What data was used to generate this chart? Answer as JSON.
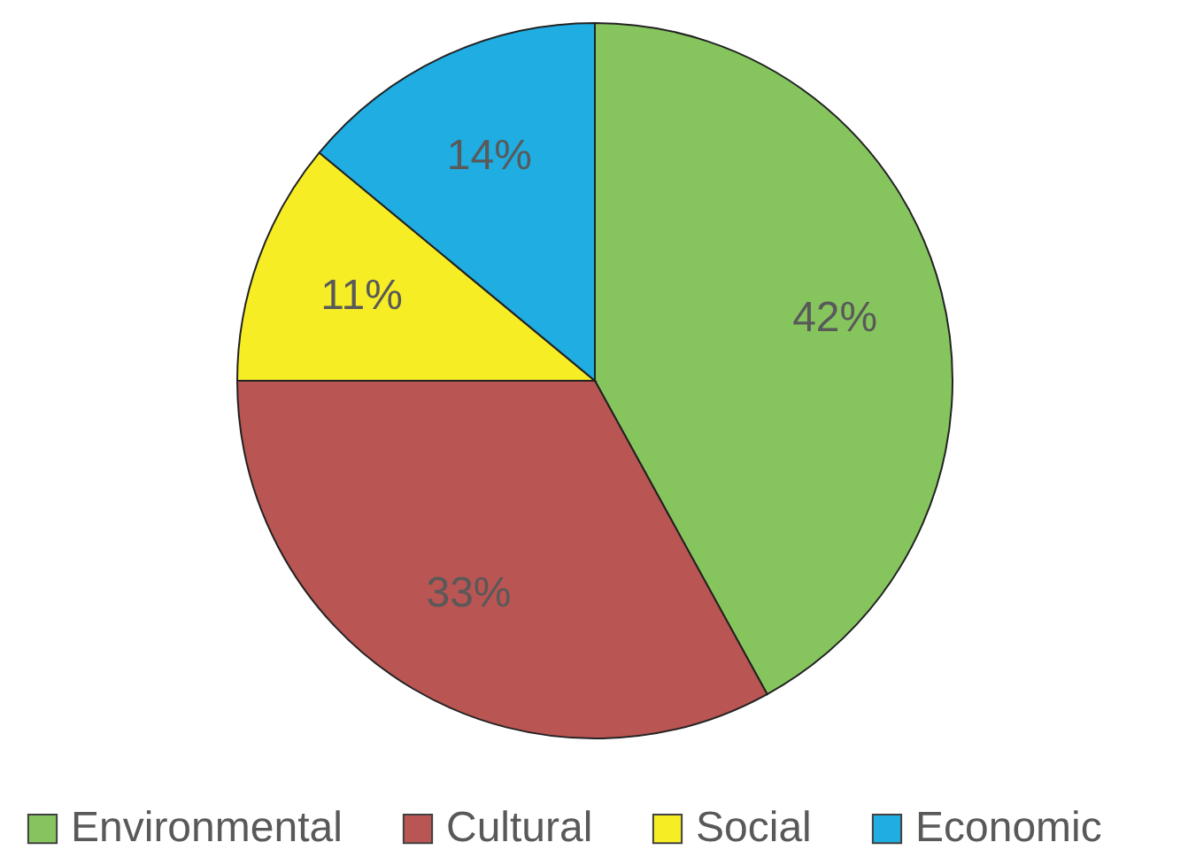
{
  "chart_data": {
    "type": "pie",
    "categories": [
      "Environmental",
      "Cultural",
      "Social",
      "Economic"
    ],
    "values": [
      42,
      33,
      11,
      14
    ],
    "value_labels": [
      "42%",
      "33%",
      "11%",
      "14%"
    ],
    "colors": [
      "#86c55e",
      "#b95552",
      "#f6ed25",
      "#1fade2"
    ],
    "legend": "bottom"
  }
}
